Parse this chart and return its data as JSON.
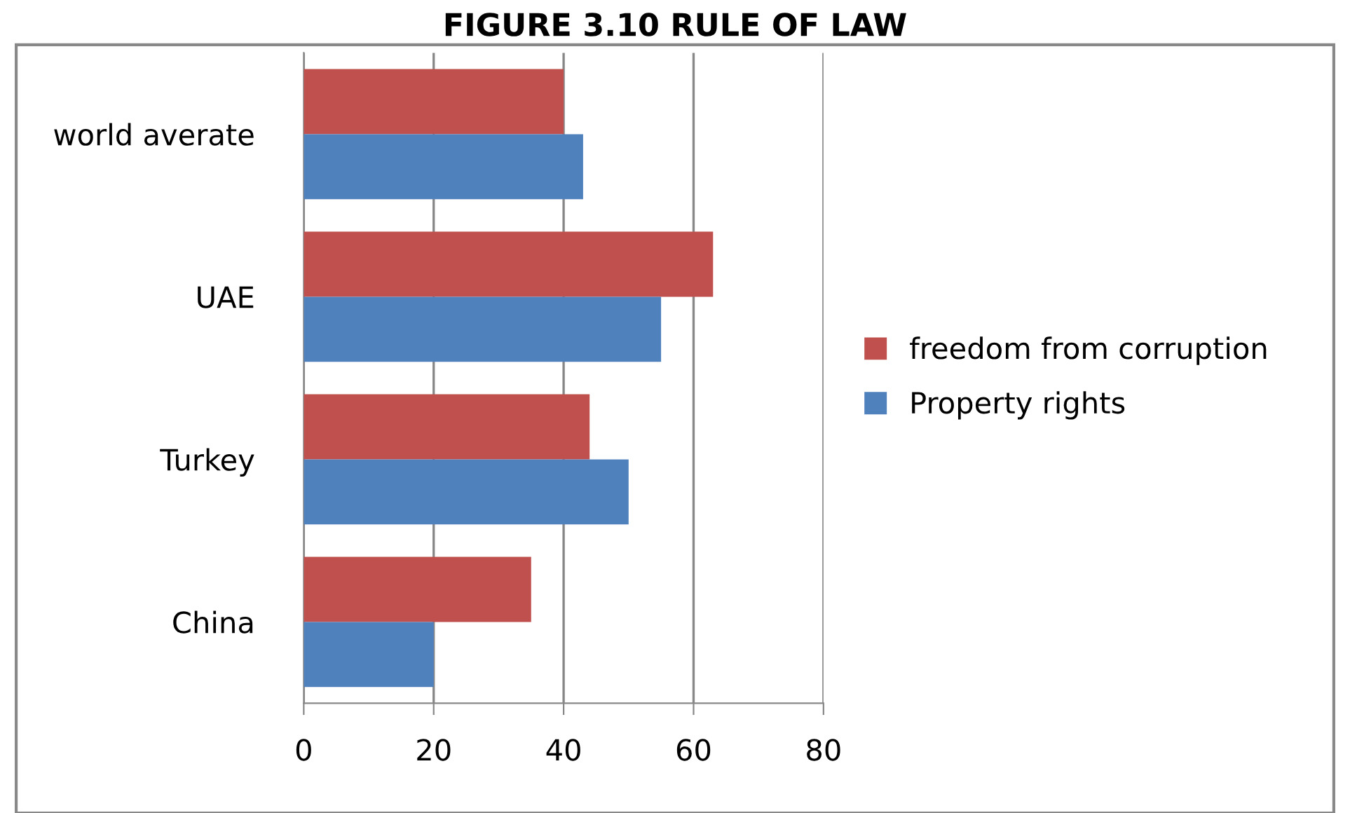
{
  "chart_data": {
    "type": "bar",
    "orientation": "horizontal",
    "title": "FIGURE 3.10 RULE OF LAW",
    "categories": [
      "world averate",
      "UAE",
      "Turkey",
      "China"
    ],
    "series": [
      {
        "name": "freedom from corruption",
        "color": "#c0504d",
        "values": [
          40,
          63,
          44,
          35
        ]
      },
      {
        "name": "Property rights",
        "color": "#4f81bd",
        "values": [
          43,
          55,
          50,
          20
        ]
      }
    ],
    "xlim": [
      0,
      80
    ],
    "xticks": [
      0,
      20,
      40,
      60,
      80
    ],
    "grid": "x",
    "legend": "right"
  }
}
